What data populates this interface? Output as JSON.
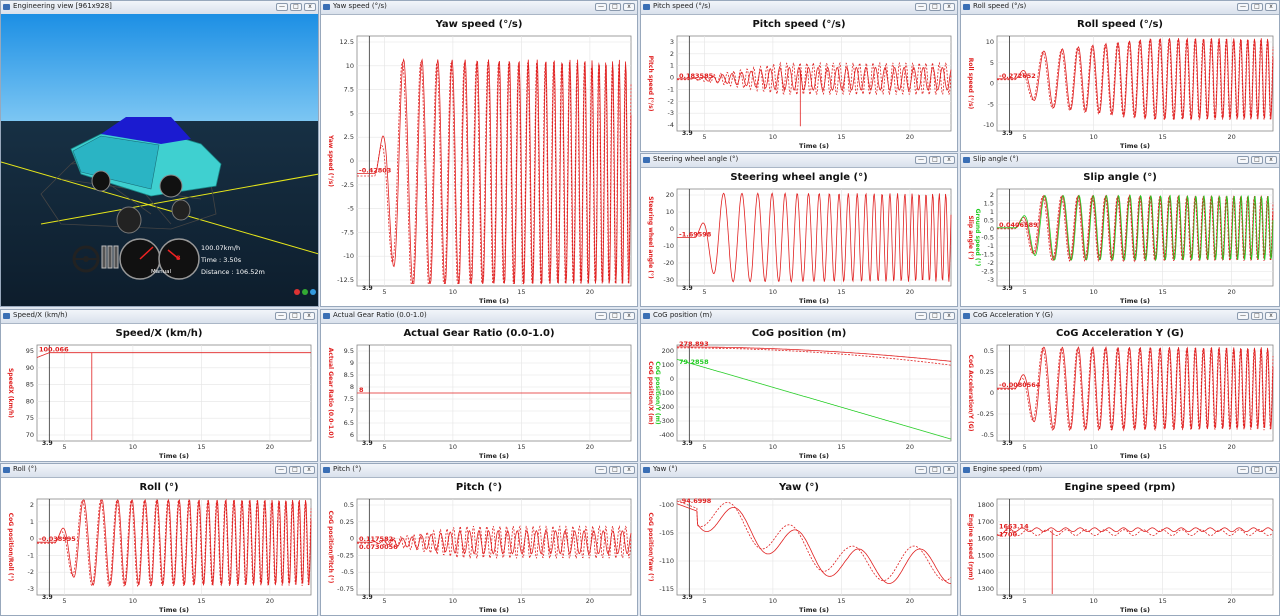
{
  "engineering_view": {
    "title": "Engineering view [961x928]",
    "speed": "100.07km/h",
    "time": "Time : 3.50s",
    "distance": "Distance : 106.52m",
    "gear_mode": "Manual",
    "gear_indicator": "8",
    "car_color": "#3fd0d0"
  },
  "colors": {
    "red": "#e02020",
    "green": "#22cc22",
    "cursor": "#333333"
  },
  "x_axis": {
    "label": "Time (s)",
    "ticks": [
      "5",
      "10",
      "15",
      "20"
    ],
    "cursor_label": "3.9"
  },
  "window_buttons": {
    "min": "—",
    "max": "□",
    "close": "x"
  },
  "panels": [
    {
      "id": "yaw-speed",
      "window_title": "Yaw speed (°/s)",
      "title": "Yaw speed (°/s)",
      "ylabel": "Yaw speed (°/s)",
      "value": "-0.42803",
      "yticks": [
        "12.5",
        "10",
        "7.5",
        "5",
        "2.5",
        "0",
        "-2.5",
        "-5",
        "-7.5",
        "-10",
        "-12.5"
      ]
    },
    {
      "id": "pitch-speed",
      "window_title": "Pitch speed (°/s)",
      "title": "Pitch speed (°/s)",
      "ylabel": "Pitch speed (°/s)",
      "value": "0.183585",
      "yticks": [
        "3",
        "2",
        "1",
        "0",
        "-1",
        "-2",
        "-3",
        "-4"
      ]
    },
    {
      "id": "roll-speed",
      "window_title": "Roll speed (°/s)",
      "title": "Roll speed (°/s)",
      "ylabel": "Roll speed (°/s)",
      "value": "-0.272652",
      "yticks": [
        "10",
        "5",
        "0",
        "-5",
        "-10"
      ]
    },
    {
      "id": "steering",
      "window_title": "Steering wheel angle (°)",
      "title": "Steering wheel angle (°)",
      "ylabel": "Steering wheel angle (°)",
      "value": "-1.69598",
      "yticks": [
        "20",
        "10",
        "0",
        "-10",
        "-20",
        "-30"
      ]
    },
    {
      "id": "slip",
      "window_title": "Slip angle (°)",
      "title": "Slip angle (°)",
      "ylabel": "Slip angle (°)",
      "ylabel2": "Ground speed (°)",
      "value": "0.0406589",
      "yticks": [
        "2",
        "1.5",
        "1",
        "0.5",
        "0",
        "-0.5",
        "-1",
        "-1.5",
        "-2",
        "-2.5",
        "-3"
      ]
    },
    {
      "id": "speedx",
      "window_title": "Speed/X (km/h)",
      "title": "Speed/X (km/h)",
      "ylabel": "SpeedX (km/h)",
      "value": "100.066",
      "yticks": [
        "95",
        "90",
        "85",
        "80",
        "75",
        "70"
      ]
    },
    {
      "id": "gear",
      "window_title": "Actual Gear Ratio (0.0-1.0)",
      "title": "Actual Gear Ratio (0.0-1.0)",
      "ylabel": "Actual Gear Ratio (0.0-1.0)",
      "value": "8",
      "yticks": [
        "9.5",
        "9",
        "8.5",
        "8",
        "7.5",
        "7",
        "6.5",
        "6"
      ]
    },
    {
      "id": "cog-pos",
      "window_title": "CoG position (m)",
      "title": "CoG position (m)",
      "ylabel": "CoG position/X (m)",
      "ylabel2": "CoG position/Y (m)",
      "value": "278.893",
      "value2": "79.2858",
      "yticks": [
        "200",
        "100",
        "0",
        "-100",
        "-200",
        "-300",
        "-400"
      ]
    },
    {
      "id": "cog-acc",
      "window_title": "CoG Acceleration Y (G)",
      "title": "CoG Acceleration Y (G)",
      "ylabel": "CoG Acceleration/Y (G)",
      "value": "-0.0080564",
      "yticks": [
        "0.5",
        "0.25",
        "0",
        "-0.25",
        "-0.5"
      ]
    },
    {
      "id": "roll",
      "window_title": "Roll (°)",
      "title": "Roll (°)",
      "ylabel": "CoG position/Roll (°)",
      "value": "-0.038995",
      "yticks": [
        "2",
        "1",
        "0",
        "-1",
        "-2",
        "-3"
      ]
    },
    {
      "id": "pitch",
      "window_title": "Pitch (°)",
      "title": "Pitch (°)",
      "ylabel": "CoG position/Pitch (°)",
      "value": "0.117582",
      "value2": "0.0730056",
      "yticks": [
        "0.5",
        "0.25",
        "0",
        "-0.25",
        "-0.5",
        "-0.75"
      ]
    },
    {
      "id": "yaw",
      "window_title": "Yaw (°)",
      "title": "Yaw (°)",
      "ylabel": "CoG position/Yaw (°)",
      "value": "-94.6998",
      "yticks": [
        "-100",
        "-105",
        "-110",
        "-115"
      ]
    },
    {
      "id": "engine",
      "window_title": "Engine speed (rpm)",
      "title": "Engine speed (rpm)",
      "ylabel": "Engine speed (rpm)",
      "value": "1663.14",
      "value2": "1700",
      "yticks": [
        "1800",
        "1700",
        "1600",
        "1500",
        "1400",
        "1300"
      ]
    }
  ]
}
